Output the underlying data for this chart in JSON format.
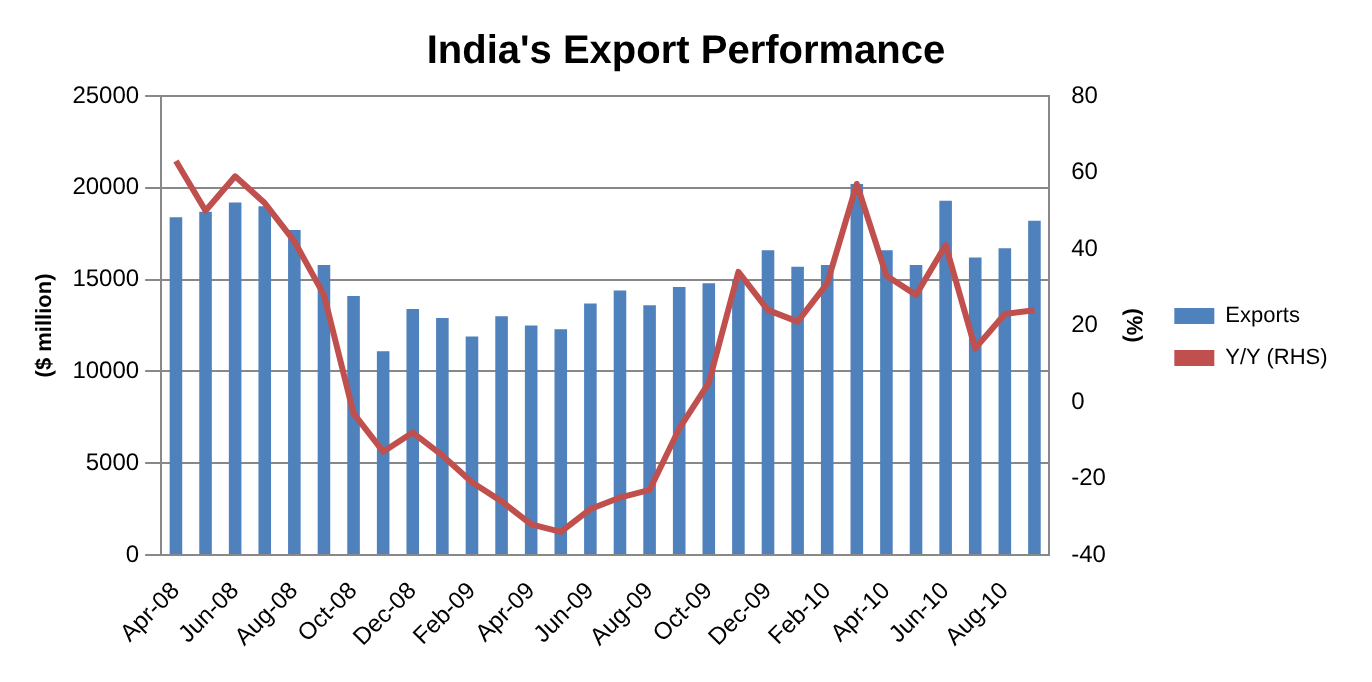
{
  "chart_data": {
    "type": "bar",
    "title": "India's Export Performance",
    "ylabel": "($ million)",
    "y2label": "(%)",
    "categories": [
      "Apr-08",
      null,
      "Jun-08",
      null,
      "Aug-08",
      null,
      "Oct-08",
      null,
      "Dec-08",
      null,
      "Feb-09",
      null,
      "Apr-09",
      null,
      "Jun-09",
      null,
      "Aug-09",
      null,
      "Oct-09",
      null,
      "Dec-09",
      null,
      "Feb-10",
      null,
      "Apr-10",
      null,
      "Jun-10",
      null,
      "Aug-10",
      null
    ],
    "series": [
      {
        "name": "Exports",
        "color": "#4f81bd",
        "values": [
          18400,
          18700,
          19200,
          19000,
          17700,
          15800,
          14100,
          11100,
          13400,
          12900,
          11900,
          13000,
          12500,
          12300,
          13700,
          14400,
          13600,
          14600,
          14800,
          15000,
          16600,
          15700,
          15800,
          20200,
          16600,
          15800,
          19300,
          16200,
          16700,
          18200
        ]
      },
      {
        "name": "Y/Y (RHS)",
        "type": "line",
        "axis": "y2",
        "color": "#c0504d",
        "values": [
          63,
          50,
          59,
          52,
          42,
          28,
          -3,
          -13,
          -8,
          -14,
          -21,
          -26,
          -32,
          -34,
          -28,
          -25,
          -23,
          -7,
          5,
          34,
          24,
          21,
          31,
          57,
          33,
          28,
          41,
          14,
          23,
          24
        ]
      }
    ],
    "ylim": [
      0,
      25000
    ],
    "yticks": [
      0,
      5000,
      10000,
      15000,
      20000,
      25000
    ],
    "y2lim": [
      -40,
      80
    ],
    "y2ticks": [
      -40,
      -20,
      0,
      20,
      40,
      60,
      80
    ],
    "grid": "y",
    "legend": "right",
    "marker": "none"
  }
}
